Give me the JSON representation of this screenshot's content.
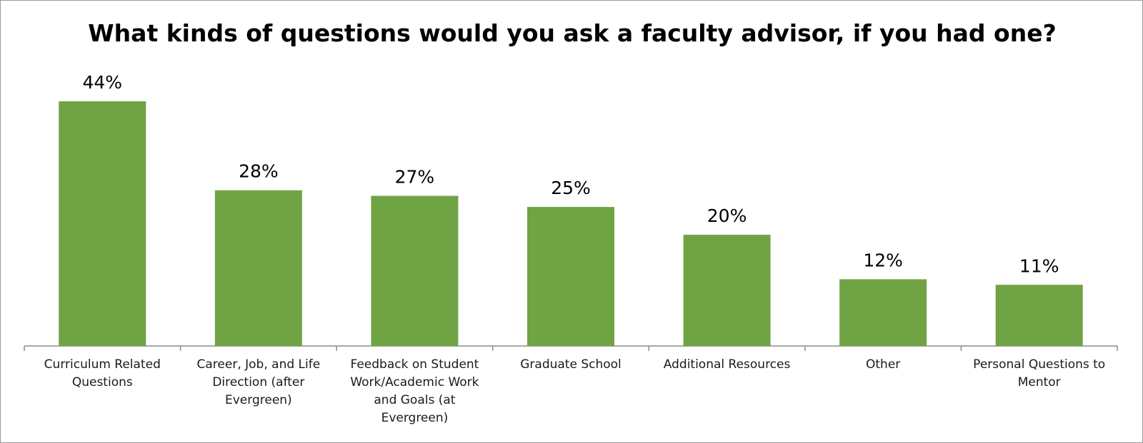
{
  "chart_data": {
    "type": "bar",
    "title": "What kinds of questions would you ask a faculty advisor, if you had one?",
    "categories": [
      "Curriculum Related Questions",
      "Career, Job, and Life Direction (after Evergreen)",
      "Feedback on Student Work/Academic Work and Goals (at Evergreen)",
      "Graduate School",
      "Additional Resources",
      "Other",
      "Personal Questions to Mentor"
    ],
    "values": [
      44,
      28,
      27,
      25,
      20,
      12,
      11
    ],
    "data_labels": [
      "44%",
      "28%",
      "27%",
      "25%",
      "20%",
      "12%",
      "11%"
    ],
    "xlabel": "",
    "ylabel": "",
    "ylim": [
      0,
      50
    ],
    "grid": false,
    "legend": "none",
    "bar_color": "#70a344"
  }
}
